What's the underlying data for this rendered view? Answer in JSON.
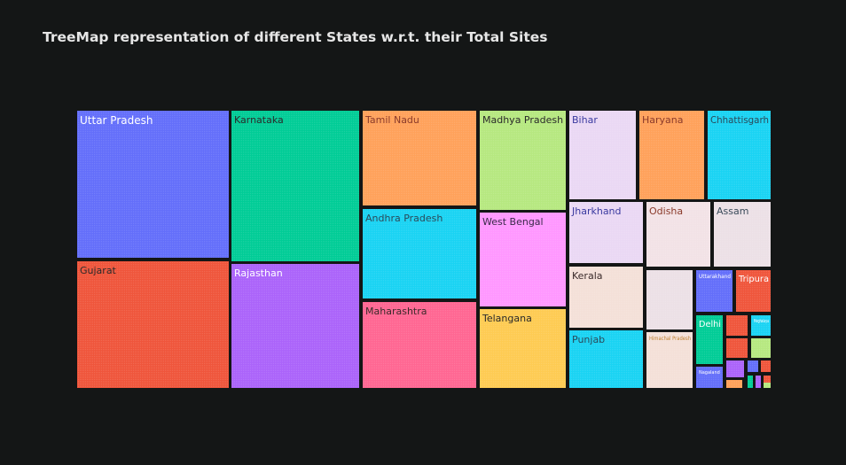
{
  "chart_data": {
    "type": "treemap",
    "title": "TreeMap representation of different States w.r.t. their Total Sites",
    "tiles": [
      {
        "label": "Uttar Pradesh",
        "color": "#636efa",
        "text_color": "#ffffff"
      },
      {
        "label": "Gujarat",
        "color": "#ef553b",
        "text_color": "#2a2a2a"
      },
      {
        "label": "Karnataka",
        "color": "#00cc96",
        "text_color": "#2a2a2a"
      },
      {
        "label": "Rajasthan",
        "color": "#ab63fa",
        "text_color": "#ffffff"
      },
      {
        "label": "Tamil Nadu",
        "color": "#ffa15a",
        "text_color": "#8a3a2a"
      },
      {
        "label": "Andhra Pradesh",
        "color": "#19d3f3",
        "text_color": "#2a4a5a"
      },
      {
        "label": "Maharashtra",
        "color": "#ff6692",
        "text_color": "#3a2a2a"
      },
      {
        "label": "Madhya Pradesh",
        "color": "#b6e880",
        "text_color": "#2a2a2a"
      },
      {
        "label": "West Bengal",
        "color": "#ff97ff",
        "text_color": "#3a2a4a"
      },
      {
        "label": "Telangana",
        "color": "#fecb52",
        "text_color": "#2a2a2a"
      },
      {
        "label": "Bihar",
        "color": "#ead8f4",
        "text_color": "#3a3aa0"
      },
      {
        "label": "Haryana",
        "color": "#ffa15a",
        "text_color": "#8a3a2a"
      },
      {
        "label": "Chhattisgarh",
        "color": "#19d3f3",
        "text_color": "#2a4a5a"
      },
      {
        "label": "Jharkhand",
        "color": "#ead8f4",
        "text_color": "#3a3aa0"
      },
      {
        "label": "Odisha",
        "color": "#f2e2e6",
        "text_color": "#8a3a2a"
      },
      {
        "label": "Assam",
        "color": "#ece0e6",
        "text_color": "#3a4a5a"
      },
      {
        "label": "Kerala",
        "color": "#f4e0d8",
        "text_color": "#3a2a2a"
      },
      {
        "label": "Punjab",
        "color": "#19d3f3",
        "text_color": "#2a4a5a"
      },
      {
        "label": "",
        "color": "#ece0e6",
        "text_color": "#3a2a2a"
      },
      {
        "label": "Himachal Pradesh",
        "color": "#f4e0d8",
        "text_color": "#c08030"
      },
      {
        "label": "Uttarakhand",
        "color": "#636efa",
        "text_color": "#ffffff"
      },
      {
        "label": "Tripura",
        "color": "#ef553b",
        "text_color": "#ffffff"
      },
      {
        "label": "Delhi",
        "color": "#00cc96",
        "text_color": "#ffffff"
      },
      {
        "label": "",
        "color": "#ef553b",
        "text_color": "#ffffff"
      },
      {
        "label": "Meghalaya",
        "color": "#19d3f3",
        "text_color": "#ffffff"
      },
      {
        "label": "",
        "color": "#ef553b",
        "text_color": "#ffffff"
      },
      {
        "label": "",
        "color": "#b6e880",
        "text_color": "#ffffff"
      },
      {
        "label": "",
        "color": "#ab63fa",
        "text_color": "#ffffff"
      },
      {
        "label": "",
        "color": "#636efa",
        "text_color": "#ffffff"
      },
      {
        "label": "",
        "color": "#ef553b",
        "text_color": "#ffffff"
      },
      {
        "label": "Nagaland",
        "color": "#636efa",
        "text_color": "#ffffff"
      },
      {
        "label": "",
        "color": "#ffa15a",
        "text_color": "#ffffff"
      },
      {
        "label": "",
        "color": "#00cc96",
        "text_color": "#ffffff"
      },
      {
        "label": "",
        "color": "#ab63fa",
        "text_color": "#ffffff"
      },
      {
        "label": "",
        "color": "#ef553b",
        "text_color": "#ffffff"
      },
      {
        "label": "",
        "color": "#b6e880",
        "text_color": "#ffffff"
      }
    ]
  }
}
